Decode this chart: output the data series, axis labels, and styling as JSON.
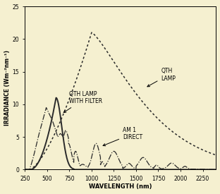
{
  "background_color": "#f5f0d0",
  "xlim": [
    250,
    2400
  ],
  "ylim": [
    0,
    25
  ],
  "xticks": [
    250,
    500,
    750,
    1000,
    1250,
    1500,
    1750,
    2000,
    2250
  ],
  "yticks": [
    0,
    5,
    10,
    15,
    20,
    25
  ],
  "xlabel": "WAVELENGTH (nm)",
  "ylabel": "IRRADIANCE (Wm⁻²nm⁻¹)",
  "line_color": "#2a2a2a"
}
